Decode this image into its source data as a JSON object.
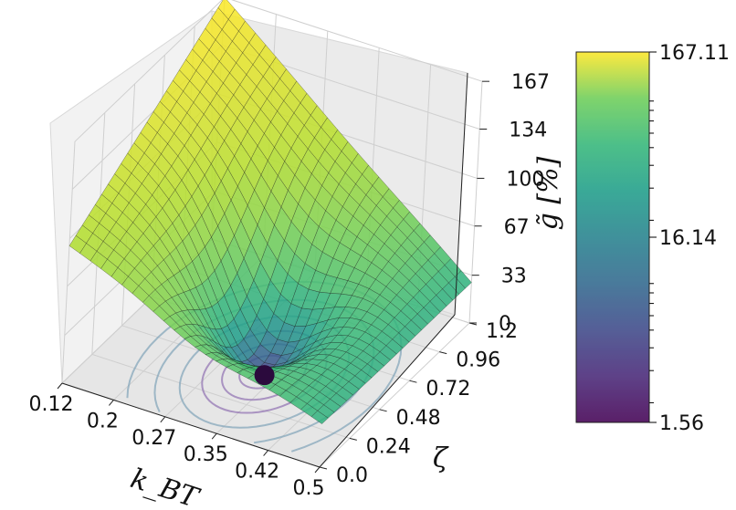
{
  "chart_data": {
    "type": "surface",
    "x_axis": {
      "label": "k_BT",
      "ticks": [
        "0.12",
        "0.2",
        "0.27",
        "0.35",
        "0.42",
        "0.5"
      ],
      "range": [
        0.12,
        0.5
      ]
    },
    "y_axis": {
      "label": "ζ",
      "ticks": [
        "0.0",
        "0.24",
        "0.48",
        "0.72",
        "0.96",
        "1.2"
      ],
      "range": [
        0.0,
        1.2
      ]
    },
    "z_axis": {
      "label": "g̃ [%]",
      "ticks": [
        "0",
        "33",
        "67",
        "100",
        "134",
        "167"
      ],
      "range": [
        0,
        167.11
      ]
    },
    "colorbar": {
      "scale": "log",
      "colormap": "viridis",
      "ticks": [
        "1.56",
        "16.14",
        "167.11"
      ],
      "min": 1.56,
      "max": 167.11
    },
    "corner_values": {
      "kBT_0.12_zeta_0.0": 95,
      "kBT_0.12_zeta_1.2": 167.11,
      "kBT_0.5_zeta_0.0": 30,
      "kBT_0.5_zeta_1.2": 28
    },
    "minimum": {
      "kBT": 0.33,
      "zeta": 0.48,
      "value": 1.56
    },
    "grid": true,
    "colors": {
      "min_marker": "#2b0a3d"
    }
  }
}
